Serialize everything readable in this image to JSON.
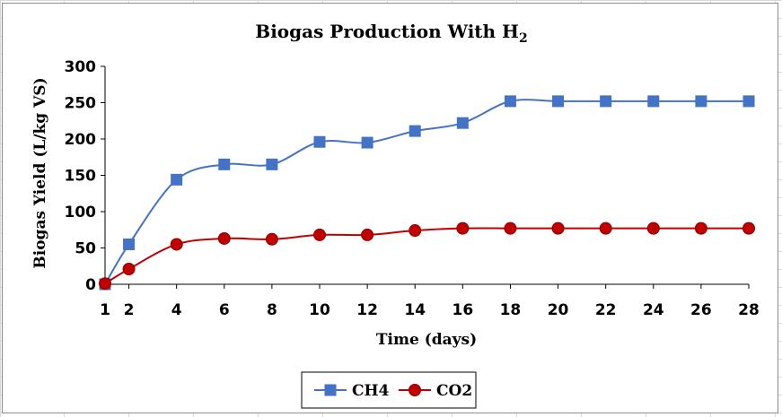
{
  "colors": {
    "ch4": "#4472C4",
    "co2": "#C00000",
    "co2_marker_edge": "#8B0000",
    "axis": "#000000",
    "sheet_grid": "#d9d9d9"
  },
  "chart_data": {
    "type": "line",
    "title_main": "Biogas Production With H",
    "title_subscript": "2",
    "xlabel": "Time (days)",
    "ylabel": "Biogas Yield (L/kg VS)",
    "x": [
      1,
      2,
      4,
      6,
      8,
      10,
      12,
      14,
      16,
      18,
      20,
      22,
      24,
      26,
      28
    ],
    "x_tick_labels": [
      "1",
      "2",
      "4",
      "6",
      "8",
      "10",
      "12",
      "14",
      "16",
      "18",
      "20",
      "22",
      "24",
      "26",
      "28"
    ],
    "xlim": [
      1,
      28
    ],
    "y_ticks": [
      0,
      50,
      100,
      150,
      200,
      250,
      300
    ],
    "ylim": [
      0,
      300
    ],
    "grid": false,
    "smooth_lines": true,
    "legend_position": "bottom",
    "series": [
      {
        "name": "CH4",
        "color_key": "ch4",
        "marker": "square",
        "values": [
          0,
          55,
          144,
          165,
          165,
          196,
          195,
          211,
          222,
          252,
          252,
          252,
          252,
          252,
          252
        ]
      },
      {
        "name": "CO2",
        "color_key": "co2",
        "marker": "circle",
        "values": [
          1,
          21,
          55,
          63,
          62,
          68,
          68,
          74,
          77,
          77,
          77,
          77,
          77,
          77,
          77
        ]
      }
    ]
  }
}
